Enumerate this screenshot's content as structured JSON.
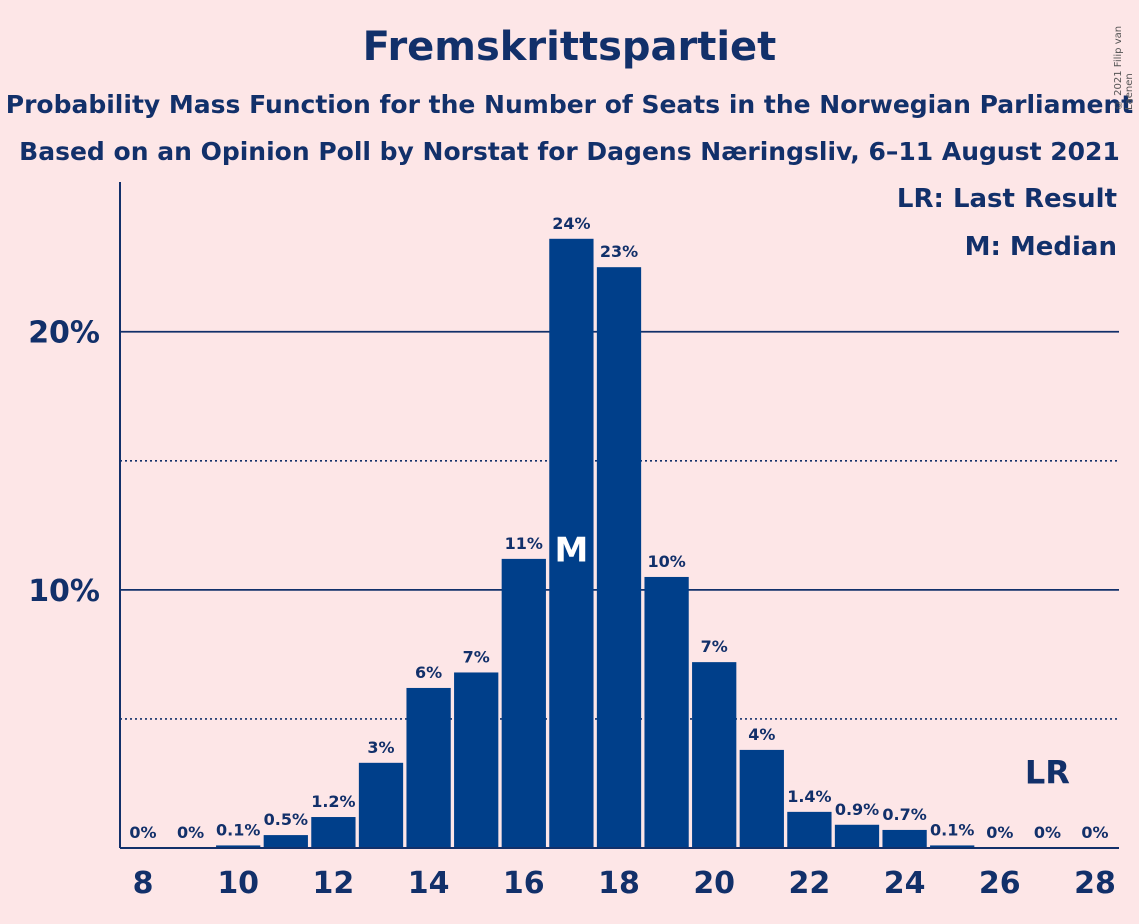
{
  "header": {
    "title": "Fremskrittspartiet",
    "subtitle1": "Probability Mass Function for the Number of Seats in the Norwegian Parliament",
    "subtitle2": "Based on an Opinion Poll by Norstat for Dagens Næringsliv, 6–11 August 2021",
    "copyright": "© 2021 Filip van Laenen"
  },
  "legend": {
    "last_result": "LR: Last Result",
    "median": "M: Median"
  },
  "colors": {
    "bar": "#003f8a",
    "background": "#fde6e7",
    "text": "#12306a"
  },
  "chart_data": {
    "type": "bar",
    "title": "Fremskrittspartiet",
    "x": [
      8,
      9,
      10,
      11,
      12,
      13,
      14,
      15,
      16,
      17,
      18,
      19,
      20,
      21,
      22,
      23,
      24,
      25,
      26,
      27,
      28
    ],
    "values": [
      0,
      0,
      0.1,
      0.5,
      1.2,
      3.3,
      6.2,
      6.8,
      11.2,
      23.6,
      22.5,
      10.5,
      7.2,
      3.8,
      1.4,
      0.9,
      0.7,
      0.1,
      0,
      0,
      0
    ],
    "labels": [
      "0%",
      "0%",
      "0.1%",
      "0.5%",
      "1.2%",
      "3%",
      "6%",
      "7%",
      "11%",
      "24%",
      "23%",
      "10%",
      "7%",
      "4%",
      "1.4%",
      "0.9%",
      "0.7%",
      "0.1%",
      "0%",
      "0%",
      "0%"
    ],
    "x_ticks": [
      8,
      10,
      12,
      14,
      16,
      18,
      20,
      22,
      24,
      26,
      28
    ],
    "y_ticks": [
      "10%",
      "20%"
    ],
    "y_tick_values": [
      10,
      20
    ],
    "ylim": [
      0,
      25.8
    ],
    "gridlines_solid": [
      10,
      20
    ],
    "gridlines_dotted": [
      5,
      15
    ],
    "median": 17,
    "median_label": "M",
    "last_result": 27,
    "last_result_label": "LR"
  }
}
